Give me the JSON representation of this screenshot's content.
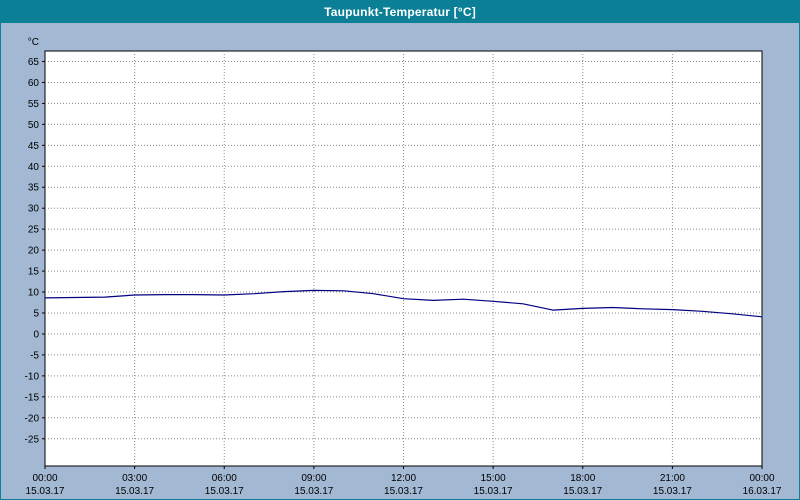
{
  "window": {
    "title": "Taupunkt-Temperatur [°C]"
  },
  "colors": {
    "titlebar_bg": "#0b7f96",
    "titlebar_text": "#ffffff",
    "page_bg": "#a3b8d3",
    "plot_bg": "#ffffff",
    "grid": "#8c8c8c",
    "axis": "#000000",
    "line": "#000080"
  },
  "chart_data": {
    "type": "line",
    "title": "Taupunkt-Temperatur [°C]",
    "xlabel": "",
    "ylabel": "°C",
    "ylim": [
      -31.5,
      67.5
    ],
    "yticks": [
      -25,
      -20,
      -15,
      -10,
      -5,
      0,
      5,
      10,
      15,
      20,
      25,
      30,
      35,
      40,
      45,
      50,
      55,
      60,
      65
    ],
    "grid": true,
    "legend": "none",
    "x_hours": [
      0,
      1,
      2,
      3,
      4,
      5,
      6,
      7,
      8,
      9,
      10,
      11,
      12,
      13,
      14,
      15,
      16,
      17,
      18,
      19,
      20,
      21,
      22,
      23,
      24
    ],
    "series": [
      {
        "name": "Taupunkt-Temperatur",
        "values": [
          8.6,
          8.7,
          8.8,
          9.3,
          9.4,
          9.4,
          9.3,
          9.6,
          10.1,
          10.4,
          10.3,
          9.6,
          8.4,
          8.0,
          8.3,
          7.8,
          7.2,
          5.7,
          6.1,
          6.3,
          6.0,
          5.8,
          5.4,
          4.8,
          4.1
        ]
      }
    ],
    "xticks": [
      {
        "time": "00:00",
        "date": "15.03.17"
      },
      {
        "time": "03:00",
        "date": "15.03.17"
      },
      {
        "time": "06:00",
        "date": "15.03.17"
      },
      {
        "time": "09:00",
        "date": "15.03.17"
      },
      {
        "time": "12:00",
        "date": "15.03.17"
      },
      {
        "time": "15:00",
        "date": "15.03.17"
      },
      {
        "time": "18:00",
        "date": "15.03.17"
      },
      {
        "time": "21:00",
        "date": "15.03.17"
      },
      {
        "time": "00:00",
        "date": "16.03.17"
      }
    ]
  }
}
